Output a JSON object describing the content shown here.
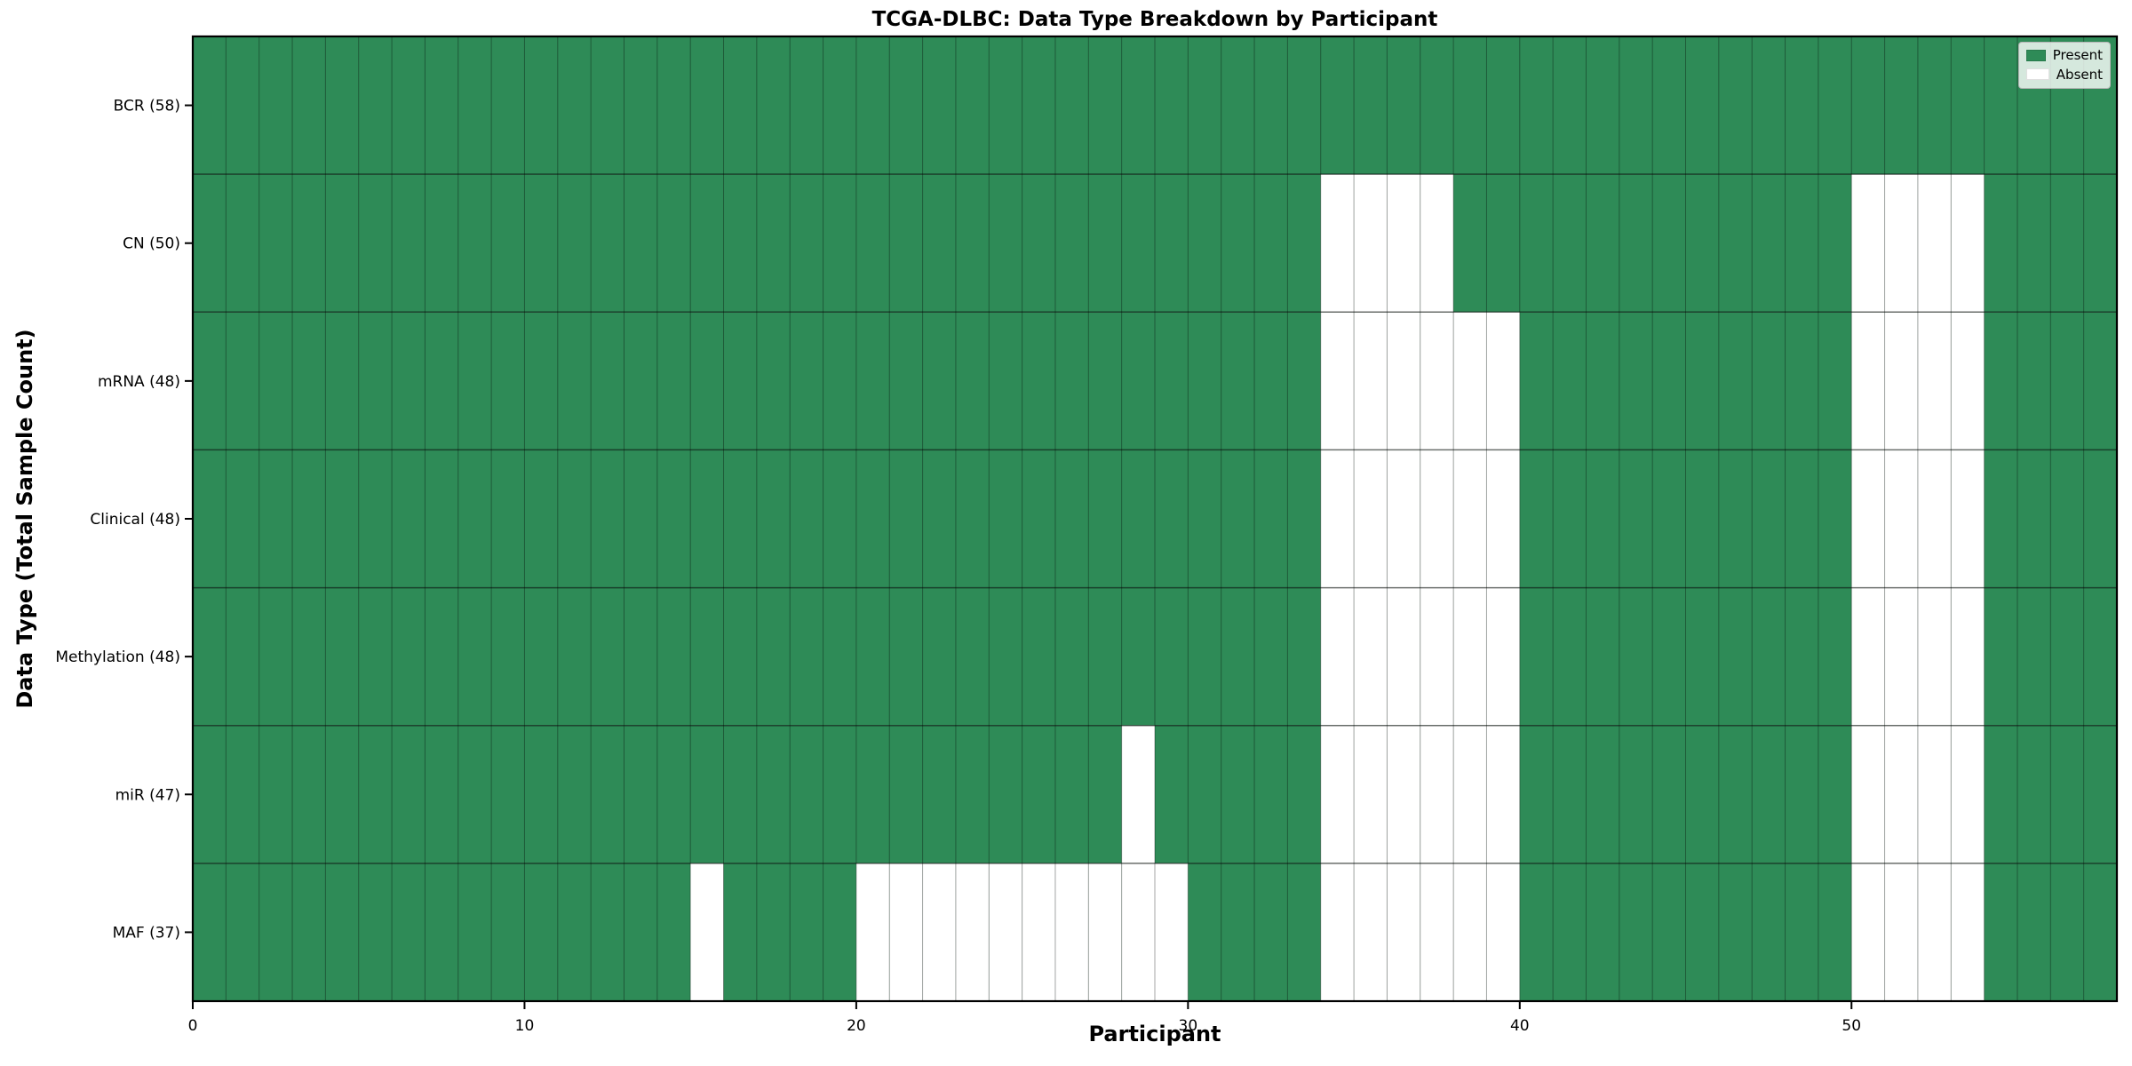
{
  "chart_data": {
    "type": "heatmap",
    "title": "TCGA-DLBC: Data Type Breakdown by Participant",
    "xlabel": "Participant",
    "ylabel": "Data Type (Total Sample Count)",
    "x_ticks": [
      0,
      10,
      20,
      30,
      40,
      50
    ],
    "xlim": [
      0,
      58
    ],
    "n_participants": 58,
    "grid": true,
    "legend_position": "upper right",
    "rows": [
      {
        "label": "BCR (58)",
        "name": "BCR",
        "total": 58,
        "absent": []
      },
      {
        "label": "CN (50)",
        "name": "CN",
        "total": 50,
        "absent": [
          34,
          35,
          36,
          37,
          50,
          51,
          52,
          53
        ]
      },
      {
        "label": "mRNA (48)",
        "name": "mRNA",
        "total": 48,
        "absent": [
          34,
          35,
          36,
          37,
          38,
          39,
          50,
          51,
          52,
          53
        ]
      },
      {
        "label": "Clinical (48)",
        "name": "Clinical",
        "total": 48,
        "absent": [
          34,
          35,
          36,
          37,
          38,
          39,
          50,
          51,
          52,
          53
        ]
      },
      {
        "label": "Methylation (48)",
        "name": "Methylation",
        "total": 48,
        "absent": [
          34,
          35,
          36,
          37,
          38,
          39,
          50,
          51,
          52,
          53
        ]
      },
      {
        "label": "miR (47)",
        "name": "miR",
        "total": 47,
        "absent": [
          28,
          34,
          35,
          36,
          37,
          38,
          39,
          50,
          51,
          52,
          53
        ]
      },
      {
        "label": "MAF (37)",
        "name": "MAF",
        "total": 37,
        "absent": [
          15,
          20,
          21,
          22,
          23,
          24,
          25,
          26,
          27,
          28,
          29,
          34,
          35,
          36,
          37,
          38,
          39,
          50,
          51,
          52,
          53
        ]
      }
    ],
    "legend": [
      {
        "label": "Present",
        "color": "#2e8b57"
      },
      {
        "label": "Absent",
        "color": "#ffffff"
      }
    ],
    "colors": {
      "present": "#2e8b57",
      "absent": "#ffffff",
      "grid_vertical": "rgba(0,0,0,0.35)",
      "grid_horizontal": "rgba(0,0,0,0.55)",
      "spine": "#000000",
      "tick_label": "#000000"
    }
  }
}
